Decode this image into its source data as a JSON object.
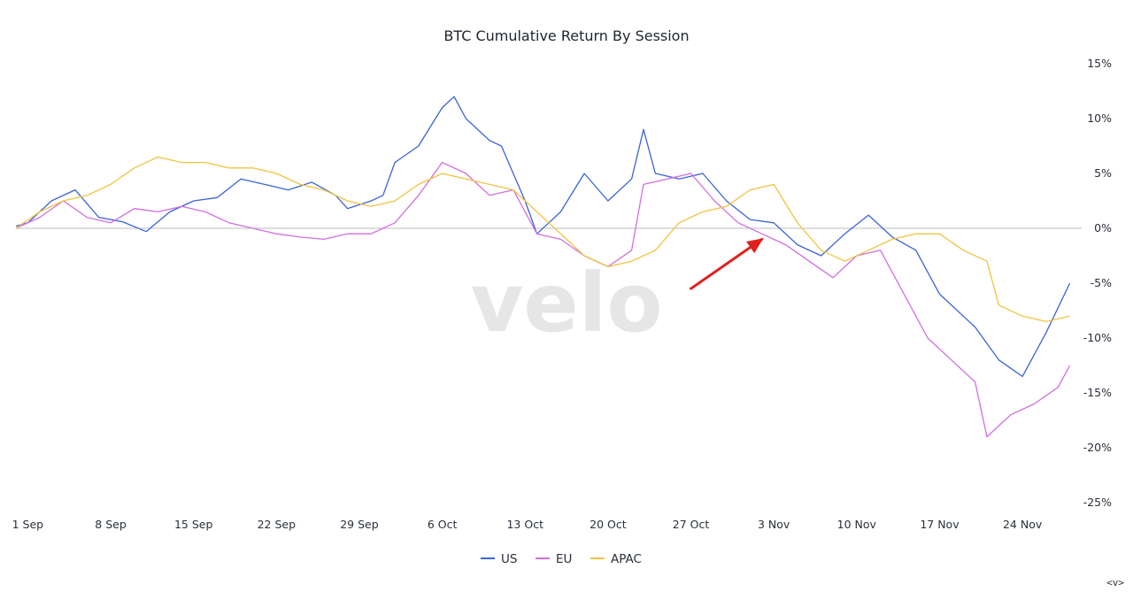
{
  "watermark": "velo",
  "corner_label": "<v>",
  "colors": {
    "US": "#3b63d6",
    "EU": "#d06ee0",
    "APAC": "#efc340",
    "zero_line": "#bdbdbd",
    "arrow": "#e0201b"
  },
  "chart_data": {
    "type": "line",
    "title": "BTC Cumulative Return By Session",
    "xlabel": "",
    "ylabel": "",
    "x_range": [
      "2023-08-31",
      "2023-11-29"
    ],
    "ylim": [
      -25,
      15
    ],
    "y_ticks": [
      15,
      10,
      5,
      0,
      -5,
      -10,
      -15,
      -20,
      -25
    ],
    "y_tick_labels": [
      "15%",
      "10%",
      "5%",
      "0%",
      "-5%",
      "-10%",
      "-15%",
      "-20%",
      "-25%"
    ],
    "x_ticks": [
      "2023-09-01",
      "2023-09-08",
      "2023-09-15",
      "2023-09-22",
      "2023-09-29",
      "2023-10-06",
      "2023-10-13",
      "2023-10-20",
      "2023-10-27",
      "2023-11-03",
      "2023-11-10",
      "2023-11-17",
      "2023-11-24"
    ],
    "x_tick_labels": [
      "1 Sep",
      "8 Sep",
      "15 Sep",
      "22 Sep",
      "29 Sep",
      "6 Oct",
      "13 Oct",
      "20 Oct",
      "27 Oct",
      "3 Nov",
      "10 Nov",
      "17 Nov",
      "24 Nov"
    ],
    "grid": false,
    "zero_line": true,
    "legend": "bottom-center",
    "series": [
      {
        "name": "US",
        "x": [
          "2023-08-31",
          "2023-09-01",
          "2023-09-03",
          "2023-09-05",
          "2023-09-07",
          "2023-09-09",
          "2023-09-11",
          "2023-09-13",
          "2023-09-15",
          "2023-09-17",
          "2023-09-19",
          "2023-09-21",
          "2023-09-23",
          "2023-09-25",
          "2023-09-27",
          "2023-09-28",
          "2023-09-30",
          "2023-10-01",
          "2023-10-02",
          "2023-10-04",
          "2023-10-06",
          "2023-10-07",
          "2023-10-08",
          "2023-10-10",
          "2023-10-11",
          "2023-10-13",
          "2023-10-14",
          "2023-10-16",
          "2023-10-18",
          "2023-10-20",
          "2023-10-22",
          "2023-10-23",
          "2023-10-24",
          "2023-10-26",
          "2023-10-28",
          "2023-10-30",
          "2023-11-01",
          "2023-11-03",
          "2023-11-05",
          "2023-11-07",
          "2023-11-09",
          "2023-11-11",
          "2023-11-13",
          "2023-11-15",
          "2023-11-17",
          "2023-11-19",
          "2023-11-20",
          "2023-11-22",
          "2023-11-24",
          "2023-11-26",
          "2023-11-28"
        ],
        "values": [
          0.2,
          0.5,
          2.5,
          3.5,
          1.0,
          0.6,
          -0.3,
          1.5,
          2.5,
          2.8,
          4.5,
          4.0,
          3.5,
          4.2,
          3.0,
          1.8,
          2.5,
          3.0,
          6.0,
          7.5,
          11.0,
          12.0,
          10.0,
          8.0,
          7.5,
          2.5,
          -0.5,
          1.5,
          5.0,
          2.5,
          4.5,
          9.0,
          5.0,
          4.5,
          5.0,
          2.5,
          0.8,
          0.5,
          -1.5,
          -2.5,
          -0.5,
          1.2,
          -0.8,
          -2.0,
          -6.0,
          -8.0,
          -9.0,
          -12.0,
          -13.5,
          -9.5,
          -5.0
        ]
      },
      {
        "name": "EU",
        "x": [
          "2023-08-31",
          "2023-09-02",
          "2023-09-04",
          "2023-09-06",
          "2023-09-08",
          "2023-09-10",
          "2023-09-12",
          "2023-09-14",
          "2023-09-16",
          "2023-09-18",
          "2023-09-20",
          "2023-09-22",
          "2023-09-24",
          "2023-09-26",
          "2023-09-28",
          "2023-09-30",
          "2023-10-02",
          "2023-10-04",
          "2023-10-06",
          "2023-10-08",
          "2023-10-10",
          "2023-10-12",
          "2023-10-14",
          "2023-10-16",
          "2023-10-18",
          "2023-10-20",
          "2023-10-22",
          "2023-10-23",
          "2023-10-25",
          "2023-10-27",
          "2023-10-29",
          "2023-10-31",
          "2023-11-02",
          "2023-11-04",
          "2023-11-06",
          "2023-11-08",
          "2023-11-10",
          "2023-11-12",
          "2023-11-14",
          "2023-11-16",
          "2023-11-18",
          "2023-11-20",
          "2023-11-21",
          "2023-11-23",
          "2023-11-25",
          "2023-11-27",
          "2023-11-28"
        ],
        "values": [
          0.0,
          1.0,
          2.5,
          1.0,
          0.5,
          1.8,
          1.5,
          2.0,
          1.5,
          0.5,
          0.0,
          -0.5,
          -0.8,
          -1.0,
          -0.5,
          -0.5,
          0.5,
          3.0,
          6.0,
          5.0,
          3.0,
          3.5,
          -0.5,
          -1.0,
          -2.5,
          -3.5,
          -2.0,
          4.0,
          4.5,
          5.0,
          2.5,
          0.5,
          -0.5,
          -1.5,
          -3.0,
          -4.5,
          -2.5,
          -2.0,
          -6.0,
          -10.0,
          -12.0,
          -14.0,
          -19.0,
          -17.0,
          -16.0,
          -14.5,
          -12.5
        ]
      },
      {
        "name": "APAC",
        "x": [
          "2023-08-31",
          "2023-09-02",
          "2023-09-04",
          "2023-09-06",
          "2023-09-08",
          "2023-09-10",
          "2023-09-12",
          "2023-09-14",
          "2023-09-16",
          "2023-09-18",
          "2023-09-20",
          "2023-09-22",
          "2023-09-24",
          "2023-09-26",
          "2023-09-28",
          "2023-09-30",
          "2023-10-02",
          "2023-10-04",
          "2023-10-06",
          "2023-10-08",
          "2023-10-10",
          "2023-10-12",
          "2023-10-14",
          "2023-10-16",
          "2023-10-18",
          "2023-10-20",
          "2023-10-22",
          "2023-10-24",
          "2023-10-26",
          "2023-10-28",
          "2023-10-30",
          "2023-11-01",
          "2023-11-03",
          "2023-11-05",
          "2023-11-07",
          "2023-11-09",
          "2023-11-11",
          "2023-11-13",
          "2023-11-15",
          "2023-11-17",
          "2023-11-19",
          "2023-11-21",
          "2023-11-22",
          "2023-11-24",
          "2023-11-26",
          "2023-11-28"
        ],
        "values": [
          0.0,
          1.5,
          2.5,
          3.0,
          4.0,
          5.5,
          6.5,
          6.0,
          6.0,
          5.5,
          5.5,
          5.0,
          4.0,
          3.5,
          2.5,
          2.0,
          2.5,
          4.0,
          5.0,
          4.5,
          4.0,
          3.5,
          1.5,
          -0.5,
          -2.5,
          -3.5,
          -3.0,
          -2.0,
          0.5,
          1.5,
          2.0,
          3.5,
          4.0,
          0.5,
          -2.0,
          -3.0,
          -2.0,
          -1.0,
          -0.5,
          -0.5,
          -2.0,
          -3.0,
          -7.0,
          -8.0,
          -8.5,
          -8.0
        ]
      }
    ],
    "annotations": [
      {
        "type": "arrow",
        "color": "#e0201b",
        "from": [
          "2023-10-27",
          -5.5
        ],
        "to": [
          "2023-11-02",
          -1.0
        ]
      }
    ]
  }
}
